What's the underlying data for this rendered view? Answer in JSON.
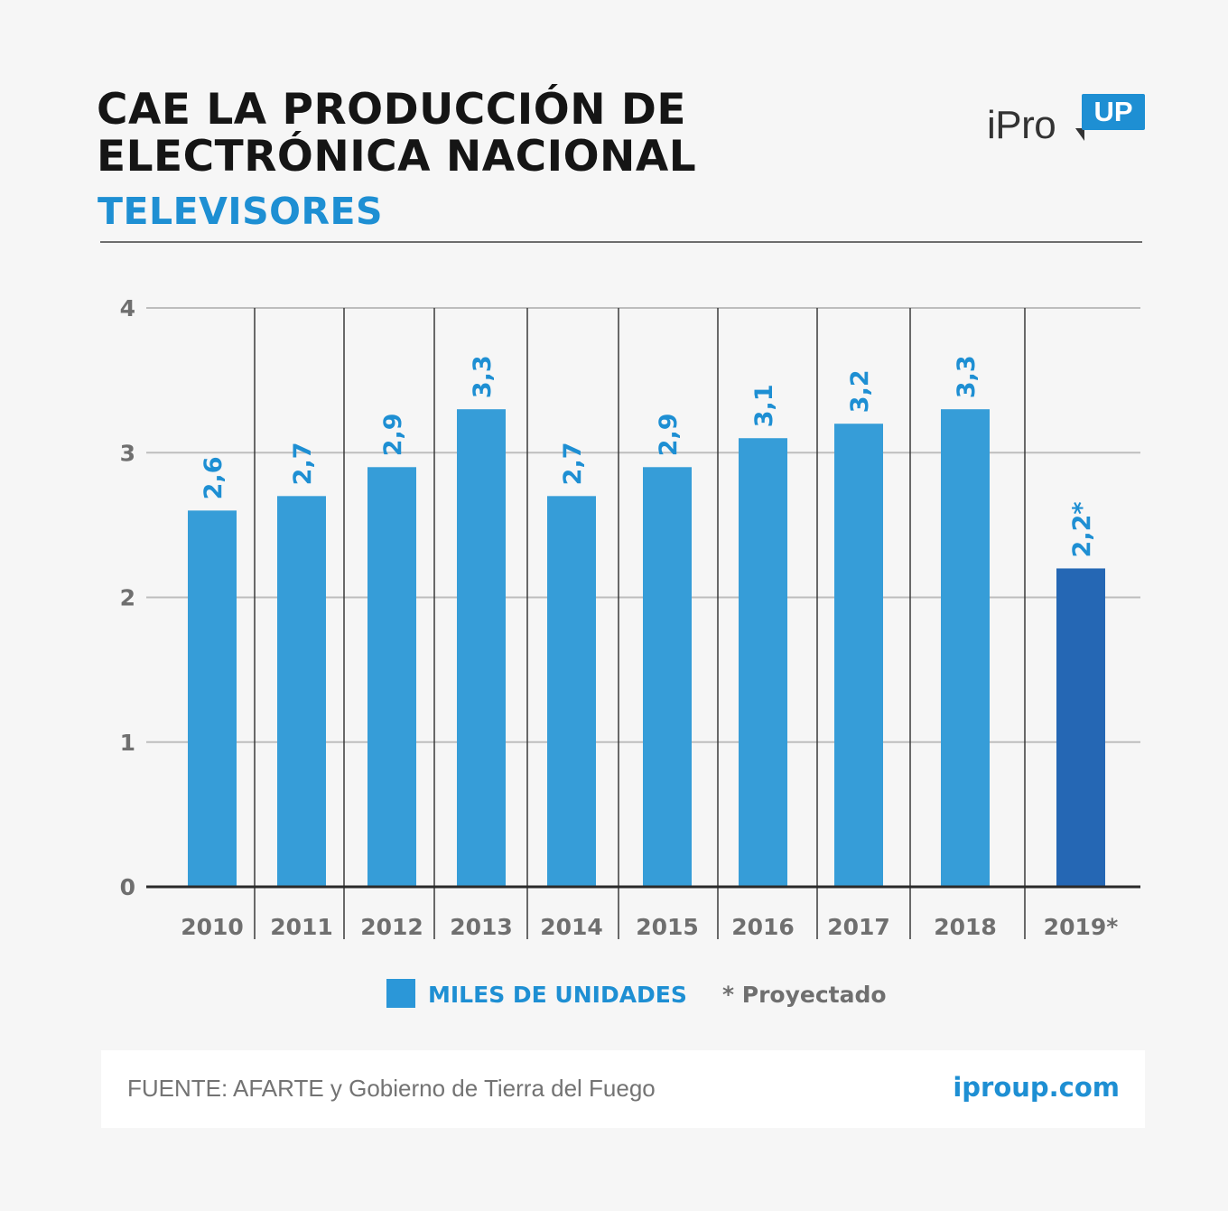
{
  "header": {
    "title_line1": "CAE LA PRODUCCIÓN DE",
    "title_line2": "ELECTRÓNICA NACIONAL",
    "subtitle": "TELEVISORES"
  },
  "logo": {
    "text": "iPro",
    "badge": "UP"
  },
  "legend": {
    "series_label": "MILES DE UNIDADES",
    "note": "* Proyectado"
  },
  "footer": {
    "source": "FUENTE: AFARTE y Gobierno de Tierra del Fuego",
    "site": "iproup.com"
  },
  "colors": {
    "bar": "#369dd8",
    "bar_projected": "#2567b4",
    "label": "#1e8fd3",
    "axis_text": "#6f6f6f"
  },
  "chart_data": {
    "type": "bar",
    "title": "TELEVISORES",
    "categories": [
      "2010",
      "2011",
      "2012",
      "2013",
      "2014",
      "2015",
      "2016",
      "2017",
      "2018",
      "2019*"
    ],
    "series": [
      {
        "name": "MILES DE UNIDADES",
        "values": [
          2.6,
          2.7,
          2.9,
          3.3,
          2.7,
          2.9,
          3.1,
          3.2,
          3.3,
          2.2
        ],
        "labels": [
          "2,6",
          "2,7",
          "2,9",
          "3,3",
          "2,7",
          "2,9",
          "3,1",
          "3,2",
          "3,3",
          "2,2*"
        ]
      }
    ],
    "projected": [
      false,
      false,
      false,
      false,
      false,
      false,
      false,
      false,
      false,
      true
    ],
    "ylim": [
      0,
      4
    ],
    "yticks": [
      0,
      1,
      2,
      3,
      4
    ],
    "grid": true,
    "legend_position": "bottom"
  }
}
